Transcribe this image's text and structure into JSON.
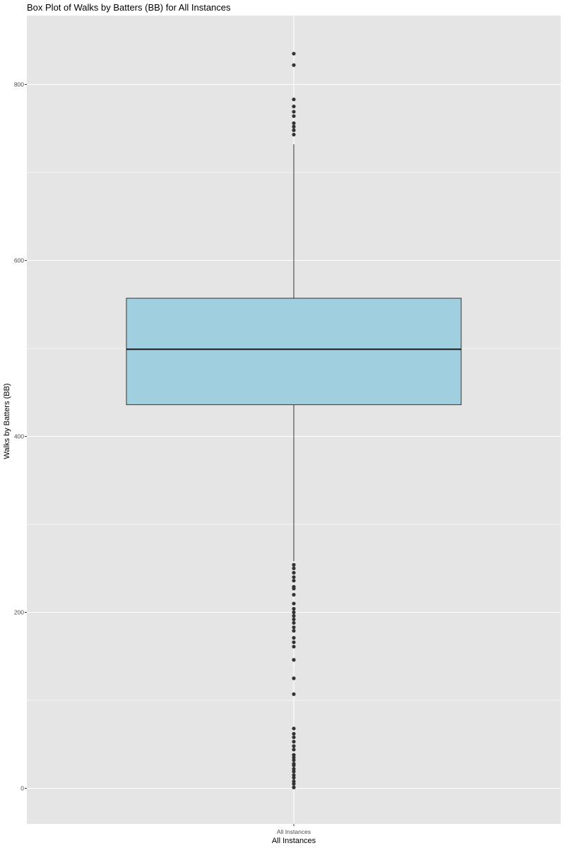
{
  "chart_data": {
    "type": "boxplot",
    "title": "Box Plot of Walks by Batters (BB) for All Instances",
    "xlabel": "All Instances",
    "ylabel": "Walks by Batters (BB)",
    "categories": [
      "All Instances"
    ],
    "ylim": [
      -40,
      880
    ],
    "yticks": [
      0,
      200,
      400,
      600,
      800
    ],
    "grid": true,
    "box": {
      "lower_whisker": 258,
      "q1": 436,
      "median": 499,
      "q3": 557,
      "upper_whisker": 732
    },
    "outliers": [
      835,
      822,
      783,
      775,
      769,
      764,
      756,
      752,
      748,
      743,
      254,
      250,
      245,
      240,
      236,
      229,
      227,
      220,
      210,
      204,
      200,
      196,
      192,
      188,
      183,
      179,
      171,
      166,
      161,
      146,
      125,
      107,
      68,
      62,
      58,
      53,
      48,
      44,
      38,
      35,
      32,
      28,
      26,
      22,
      19,
      15,
      12,
      8,
      5,
      1
    ],
    "colors": {
      "panel": "#e5e5e5",
      "grid_major": "#ffffff",
      "box_fill": "#a0cfe0",
      "box_stroke": "#333333",
      "point": "#333333"
    }
  }
}
